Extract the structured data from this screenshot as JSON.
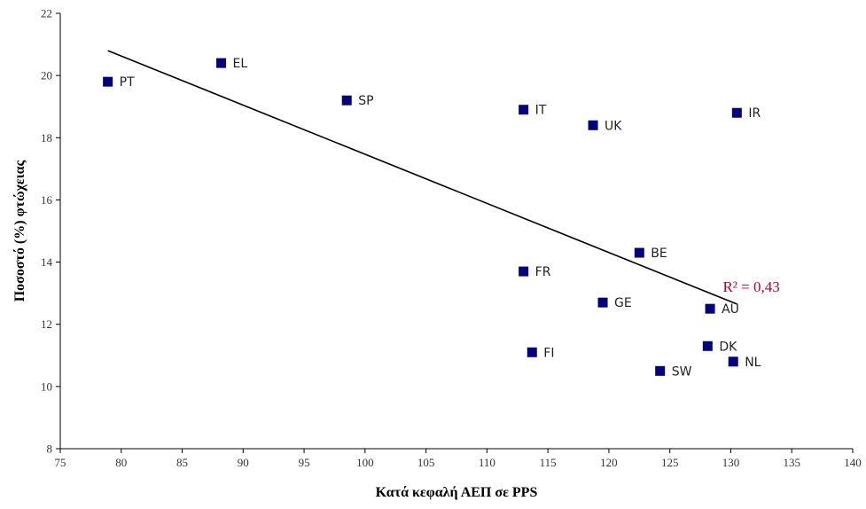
{
  "chart_data": {
    "type": "scatter",
    "title": "",
    "xlabel": "Κατά κεφαλή ΑΕΠ σε PPS",
    "ylabel": "Ποσοστό (%) φτώχειας",
    "xlim": [
      75,
      140
    ],
    "ylim": [
      8,
      22
    ],
    "xticks": [
      75,
      80,
      85,
      90,
      95,
      100,
      105,
      110,
      115,
      120,
      125,
      130,
      135,
      140
    ],
    "yticks": [
      8,
      10,
      12,
      14,
      16,
      18,
      20,
      22
    ],
    "grid": false,
    "marker_color": "#000080",
    "points": [
      {
        "label": "PT",
        "x": 78.9,
        "y": 19.8
      },
      {
        "label": "EL",
        "x": 88.2,
        "y": 20.4
      },
      {
        "label": "SP",
        "x": 98.5,
        "y": 19.2
      },
      {
        "label": "IT",
        "x": 113.0,
        "y": 18.9
      },
      {
        "label": "UK",
        "x": 118.7,
        "y": 18.4
      },
      {
        "label": "IR",
        "x": 130.5,
        "y": 18.8
      },
      {
        "label": "BE",
        "x": 122.5,
        "y": 14.3
      },
      {
        "label": "FR",
        "x": 113.0,
        "y": 13.7
      },
      {
        "label": "GE",
        "x": 119.5,
        "y": 12.7
      },
      {
        "label": "AU",
        "x": 128.3,
        "y": 12.5
      },
      {
        "label": "DK",
        "x": 128.1,
        "y": 11.3
      },
      {
        "label": "FI",
        "x": 113.7,
        "y": 11.1
      },
      {
        "label": "SW",
        "x": 124.2,
        "y": 10.5
      },
      {
        "label": "NL",
        "x": 130.2,
        "y": 10.8
      }
    ],
    "trendline": {
      "x": [
        78.9,
        130.5
      ],
      "y": [
        20.8,
        12.65
      ]
    },
    "annotation": {
      "text": "R² = 0,43",
      "x": 130.0,
      "y": 13.05,
      "color": "#c0001d"
    }
  }
}
